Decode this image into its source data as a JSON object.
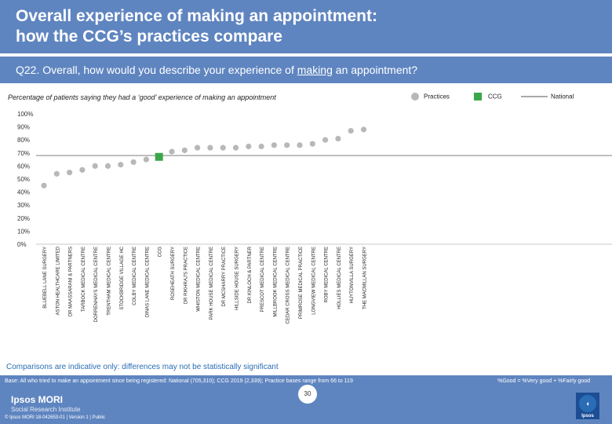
{
  "header": {
    "title_line1": "Overall experience of making an appointment:",
    "title_line2": "how the CCG’s practices compare"
  },
  "question": {
    "prefix": "Q22. Overall, how would you describe your experience of ",
    "underlined": "making",
    "suffix": " an appointment?"
  },
  "subtitle": "Percentage of patients saying they had a ‘good’ experience of making an appointment",
  "legend": {
    "practices": "Practices",
    "ccg": "CCG",
    "national": "National"
  },
  "colors": {
    "practice": "#b8b8b8",
    "ccg": "#3aa64a",
    "national": "#a9a9a9",
    "bar": "#5f85c0",
    "note": "#2a6db5"
  },
  "chart_data": {
    "type": "scatter",
    "title": "Percentage of patients saying they had a ‘good’ experience of making an appointment",
    "ylim": [
      0,
      100
    ],
    "yticks": [
      "0%",
      "10%",
      "20%",
      "30%",
      "40%",
      "50%",
      "60%",
      "70%",
      "80%",
      "90%",
      "100%"
    ],
    "national_value": 68,
    "categories": [
      {
        "name": "BLUEBELL LANE SURGERY",
        "value": 45,
        "kind": "practice"
      },
      {
        "name": "ASTON HEALTHCARE LIMITED",
        "value": 54,
        "kind": "practice"
      },
      {
        "name": "DR MAASSARANI & PARTNERS",
        "value": 55,
        "kind": "practice"
      },
      {
        "name": "TARBOCK MEDICAL CENTRE",
        "value": 57,
        "kind": "practice"
      },
      {
        "name": "DORRENHAYS MEDICAL CENTRE",
        "value": 60,
        "kind": "practice"
      },
      {
        "name": "TRENTHAM MEDICAL CENTRE",
        "value": 60,
        "kind": "practice"
      },
      {
        "name": "STOCKBRIDGE VILLAGE HC",
        "value": 61,
        "kind": "practice"
      },
      {
        "name": "COLBY MEDICAL CENTRE",
        "value": 63,
        "kind": "practice"
      },
      {
        "name": "DINAS LANE MEDICAL CENTRE",
        "value": 65,
        "kind": "practice"
      },
      {
        "name": "CCG",
        "value": 67,
        "kind": "ccg"
      },
      {
        "name": "ROSEHEATH SURGERY",
        "value": 71,
        "kind": "practice"
      },
      {
        "name": "DR RIKHRAJ'S PRACTICE",
        "value": 72,
        "kind": "practice"
      },
      {
        "name": "WHISTON MEDICAL CENTRE",
        "value": 74,
        "kind": "practice"
      },
      {
        "name": "PARK HOUSE MEDICAL CENTRE",
        "value": 74,
        "kind": "practice"
      },
      {
        "name": "DR MCSHARRY PRACTICE",
        "value": 74,
        "kind": "practice"
      },
      {
        "name": "HILLSIDE HOUSE SURGERY",
        "value": 74,
        "kind": "practice"
      },
      {
        "name": "DR KINLOCH & PARTNER",
        "value": 75,
        "kind": "practice"
      },
      {
        "name": "PRESCOT MEDICAL CENTRE",
        "value": 75,
        "kind": "practice"
      },
      {
        "name": "MILLBROOK MEDICAL CENTRE",
        "value": 76,
        "kind": "practice"
      },
      {
        "name": "CEDAR CROSS MEDICAL CENTRE",
        "value": 76,
        "kind": "practice"
      },
      {
        "name": "PRIMROSE MEDICAL PRACTICE",
        "value": 76,
        "kind": "practice"
      },
      {
        "name": "LONGVIEW MEDICAL CENTRE",
        "value": 77,
        "kind": "practice"
      },
      {
        "name": "ROBY MEDICAL CENTRE",
        "value": 80,
        "kind": "practice"
      },
      {
        "name": "HOLLIES MEDICAL CENTRE",
        "value": 81,
        "kind": "practice"
      },
      {
        "name": "HUYTONVILLA SURGERY",
        "value": 87,
        "kind": "practice"
      },
      {
        "name": "THE MACMILLAN SURGERY",
        "value": 88,
        "kind": "practice"
      }
    ]
  },
  "compare_note": "Comparisons are indicative only: differences may not be statistically significant",
  "footer": {
    "base": "Base: All who tried to make an appointment since being registered: National (705,310); CCG 2019 (2,339); Practice bases range from 66 to 119",
    "legend_note": "%Good = %Very good + %Fairly good",
    "brand_line1": "Ipsos MORI",
    "brand_line2": "Social Research Institute",
    "copyright": "© Ipsos MORI     18-042653-01 | Version 1 | Public",
    "page_number": "30",
    "logo_text": "Ipsos",
    "logo_mark": "◖"
  }
}
